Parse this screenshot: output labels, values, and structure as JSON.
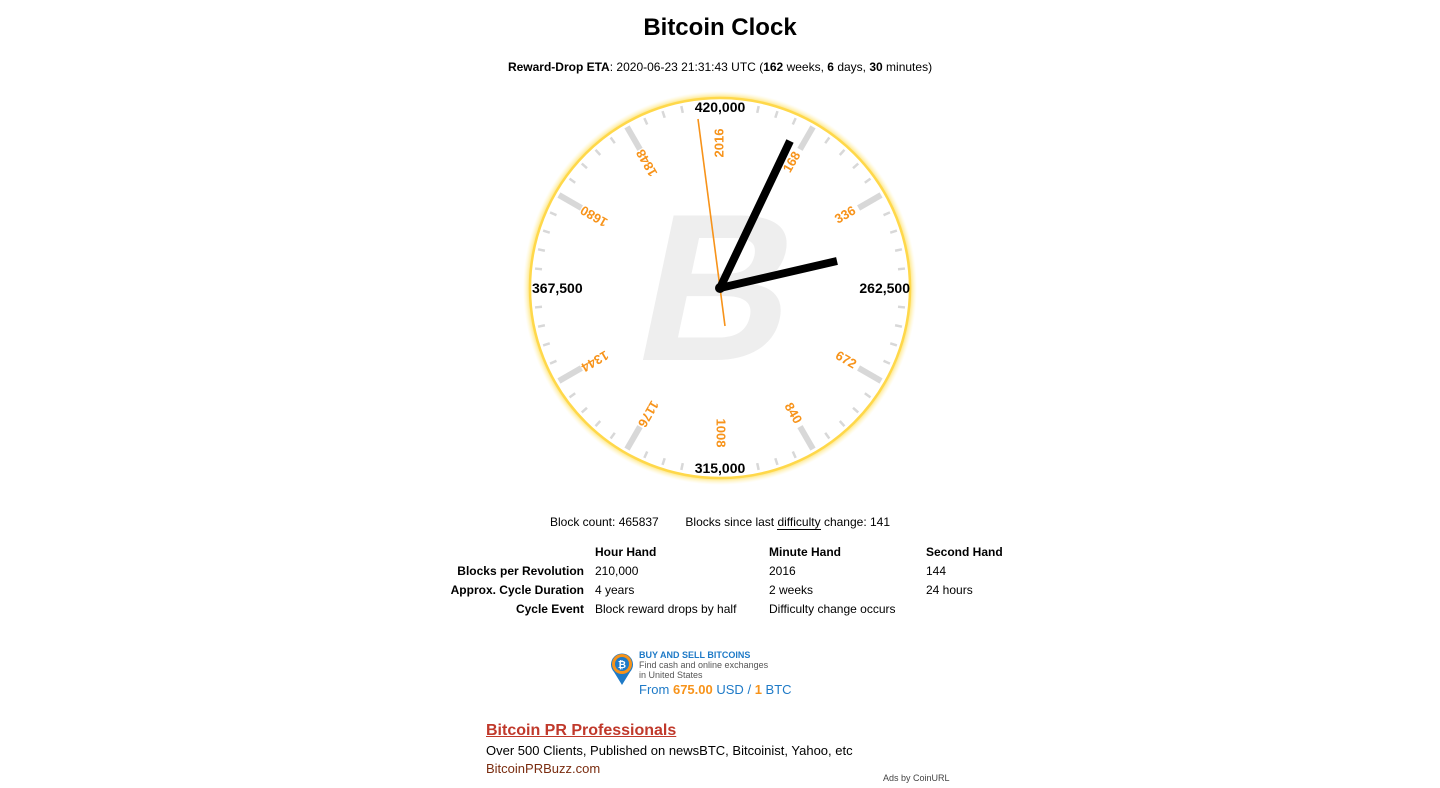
{
  "title": "Bitcoin Clock",
  "eta": {
    "label": "Reward-Drop ETA",
    "colon": ":",
    "datetime": "2020-06-23 21:31:43 UTC",
    "open": "(",
    "weeks_num": "162",
    "weeks_unit": "weeks,",
    "days_num": "6",
    "days_unit": "days,",
    "minutes_num": "30",
    "minutes_unit": "minutes)"
  },
  "clock": {
    "main_labels": {
      "top": "420,000",
      "right": "262,500",
      "bottom": "315,000",
      "left": "367,500"
    },
    "difficulty_labels": [
      "2016",
      "168",
      "336",
      "672",
      "840",
      "1008",
      "1176",
      "1344",
      "1680",
      "1848"
    ],
    "accent_color": "#f7931a",
    "watermark_icon": "bitcoin-logo-icon"
  },
  "block_info": {
    "block_count_label": "Block count:",
    "block_count": "465837",
    "since_prefix": "Blocks since last",
    "since_link": "difficulty",
    "since_suffix": "change:",
    "since_value": "141"
  },
  "table": {
    "headers": [
      "Hour Hand",
      "Minute Hand",
      "Second Hand"
    ],
    "rows": [
      {
        "label": "Blocks per Revolution",
        "values": [
          "210,000",
          "2016",
          "144"
        ]
      },
      {
        "label": "Approx. Cycle Duration",
        "values": [
          "4 years",
          "2 weeks",
          "24 hours"
        ]
      },
      {
        "label": "Cycle Event",
        "values": [
          "Block reward drops by half",
          "Difficulty change occurs",
          ""
        ]
      }
    ]
  },
  "ad1": {
    "title": "BUY AND SELL BITCOINS",
    "desc1": "Find cash and online exchanges",
    "desc2": "in United States",
    "price_from": "From",
    "price_value": "675.00",
    "price_currency": "USD",
    "slash": "/",
    "price_one": "1",
    "price_btc": "BTC"
  },
  "ad2": {
    "title": "Bitcoin PR Professionals",
    "desc": "Over 500 Clients, Published on newsBTC, Bitcoinist, Yahoo, etc",
    "url": "BitcoinPRBuzz.com"
  },
  "ads_by": "Ads by CoinURL"
}
